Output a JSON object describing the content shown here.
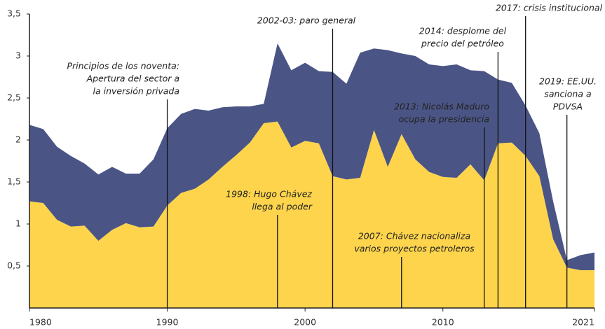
{
  "chart_data": {
    "type": "stacked_area",
    "x": [
      1980,
      1981,
      1982,
      1983,
      1984,
      1985,
      1986,
      1987,
      1988,
      1989,
      1990,
      1991,
      1992,
      1993,
      1994,
      1995,
      1996,
      1997,
      1998,
      1999,
      2000,
      2001,
      2002,
      2003,
      2004,
      2005,
      2006,
      2007,
      2008,
      2009,
      2010,
      2011,
      2012,
      2013,
      2014,
      2015,
      2016,
      2017,
      2018,
      2019,
      2020,
      2021
    ],
    "series": [
      {
        "color": "#fdd44c",
        "values": [
          1.27,
          1.25,
          1.05,
          0.97,
          0.98,
          0.8,
          0.93,
          1.01,
          0.96,
          0.97,
          1.22,
          1.37,
          1.42,
          1.53,
          1.68,
          1.82,
          1.97,
          2.2,
          2.22,
          1.91,
          1.99,
          1.96,
          1.57,
          1.53,
          1.55,
          2.12,
          1.68,
          2.07,
          1.77,
          1.62,
          1.56,
          1.55,
          1.71,
          1.52,
          1.96,
          1.97,
          1.81,
          1.57,
          0.82,
          0.48,
          0.45,
          0.45
        ]
      },
      {
        "color": "#4a5585",
        "values": [
          0.91,
          0.88,
          0.87,
          0.84,
          0.74,
          0.79,
          0.75,
          0.59,
          0.64,
          0.8,
          0.92,
          0.94,
          0.95,
          0.82,
          0.71,
          0.58,
          0.43,
          0.23,
          0.93,
          0.92,
          0.93,
          0.86,
          1.24,
          1.14,
          1.49,
          0.97,
          1.39,
          0.96,
          1.23,
          1.28,
          1.32,
          1.35,
          1.12,
          1.3,
          0.76,
          0.71,
          0.6,
          0.51,
          0.45,
          0.09,
          0.18,
          0.21
        ]
      }
    ],
    "xlim": [
      1980,
      2021
    ],
    "xticks": [
      1980,
      1990,
      2000,
      2010,
      2021
    ],
    "ylim": [
      0,
      3.5
    ],
    "yticks": [
      {
        "value": 0.5,
        "label": "0,5"
      },
      1,
      {
        "value": 1.5,
        "label": "1,5"
      },
      2,
      {
        "value": 2.5,
        "label": "2,5"
      },
      3,
      {
        "value": 3.5,
        "label": "3,5"
      }
    ],
    "annotations": [
      {
        "x": 1990,
        "text": [
          "Principios de los noventa:",
          "Apertura del sector a",
          "la inversión privada"
        ]
      },
      {
        "x": 1998,
        "text": [
          "1998: Hugo Chávez",
          "llega al poder"
        ]
      },
      {
        "x": 2002,
        "text": [
          "2002-03: paro general"
        ]
      },
      {
        "x": 2007,
        "text": [
          "2007: Chávez nacionaliza",
          "varios proyectos petroleros"
        ]
      },
      {
        "x": 2013,
        "text": [
          "2013: Nicolás Maduro",
          "ocupa la presidencia"
        ]
      },
      {
        "x": 2014,
        "text": [
          "2014: desplome del",
          "precio del petróleo"
        ]
      },
      {
        "x": 2016,
        "text": [
          "2017: crisis institucional"
        ]
      },
      {
        "x": 2019,
        "text": [
          "2019: EE.UU.",
          "sanciona a",
          "PDVSA"
        ]
      }
    ]
  }
}
